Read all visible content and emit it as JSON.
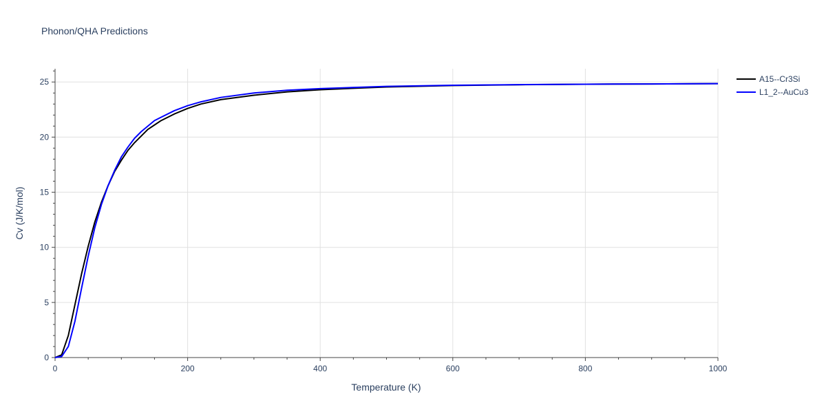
{
  "chart_data": {
    "type": "line",
    "title": "Phonon/QHA Predictions",
    "xlabel": "Temperature (K)",
    "ylabel": "Cv (J/K/mol)",
    "xlim": [
      0,
      1000
    ],
    "ylim": [
      0,
      26.2
    ],
    "xticks": [
      0,
      200,
      400,
      600,
      800,
      1000
    ],
    "yticks": [
      0,
      5,
      10,
      15,
      20,
      25
    ],
    "grid": true,
    "legend_position": "top-right",
    "series": [
      {
        "name": "A15--Cr3Si",
        "color": "#000000",
        "x": [
          0,
          10,
          20,
          30,
          40,
          50,
          60,
          70,
          80,
          90,
          100,
          110,
          120,
          130,
          140,
          150,
          160,
          180,
          200,
          220,
          250,
          300,
          350,
          400,
          500,
          600,
          700,
          800,
          900,
          1000
        ],
        "y": [
          0,
          0.25,
          2.0,
          4.8,
          7.6,
          10.1,
          12.3,
          14.1,
          15.6,
          16.9,
          17.9,
          18.8,
          19.5,
          20.1,
          20.7,
          21.1,
          21.5,
          22.1,
          22.6,
          23.0,
          23.4,
          23.8,
          24.1,
          24.3,
          24.55,
          24.68,
          24.75,
          24.8,
          24.82,
          24.85
        ]
      },
      {
        "name": "L1_2--AuCu3",
        "color": "#0000ff",
        "x": [
          0,
          10,
          20,
          30,
          40,
          50,
          60,
          70,
          80,
          90,
          100,
          110,
          120,
          130,
          140,
          150,
          160,
          180,
          200,
          220,
          250,
          300,
          350,
          400,
          500,
          600,
          700,
          800,
          900,
          1000
        ],
        "y": [
          0,
          0.1,
          1.0,
          3.3,
          6.3,
          9.2,
          11.8,
          13.9,
          15.6,
          17.0,
          18.2,
          19.1,
          19.9,
          20.5,
          21.0,
          21.5,
          21.8,
          22.4,
          22.85,
          23.2,
          23.6,
          24.0,
          24.25,
          24.4,
          24.6,
          24.7,
          24.76,
          24.8,
          24.82,
          24.85
        ]
      }
    ]
  }
}
